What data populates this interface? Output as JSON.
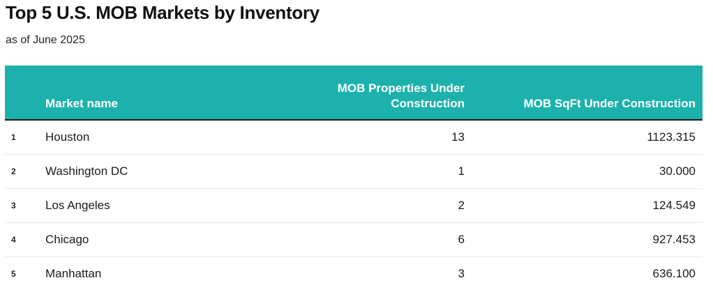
{
  "header": {
    "title": "Top 5 U.S. MOB Markets by Inventory",
    "subtitle": "as of June 2025"
  },
  "table": {
    "columns": {
      "rank": "",
      "market": "Market name",
      "properties": "MOB Properties Under Construction",
      "sqft": "MOB SqFt Under Construction"
    },
    "rows": [
      {
        "rank": "1",
        "market": "Houston",
        "properties": "13",
        "sqft": "1123.315"
      },
      {
        "rank": "2",
        "market": "Washington DC",
        "properties": "1",
        "sqft": "30.000"
      },
      {
        "rank": "3",
        "market": "Los Angeles",
        "properties": "2",
        "sqft": "124.549"
      },
      {
        "rank": "4",
        "market": "Chicago",
        "properties": "6",
        "sqft": "927.453"
      },
      {
        "rank": "5",
        "market": "Manhattan",
        "properties": "3",
        "sqft": "636.100"
      }
    ]
  },
  "colors": {
    "header_background": "#1db1ad",
    "header_text": "#ffffff",
    "header_rule": "#1a1a1a",
    "row_divider": "#e6e6e6"
  }
}
